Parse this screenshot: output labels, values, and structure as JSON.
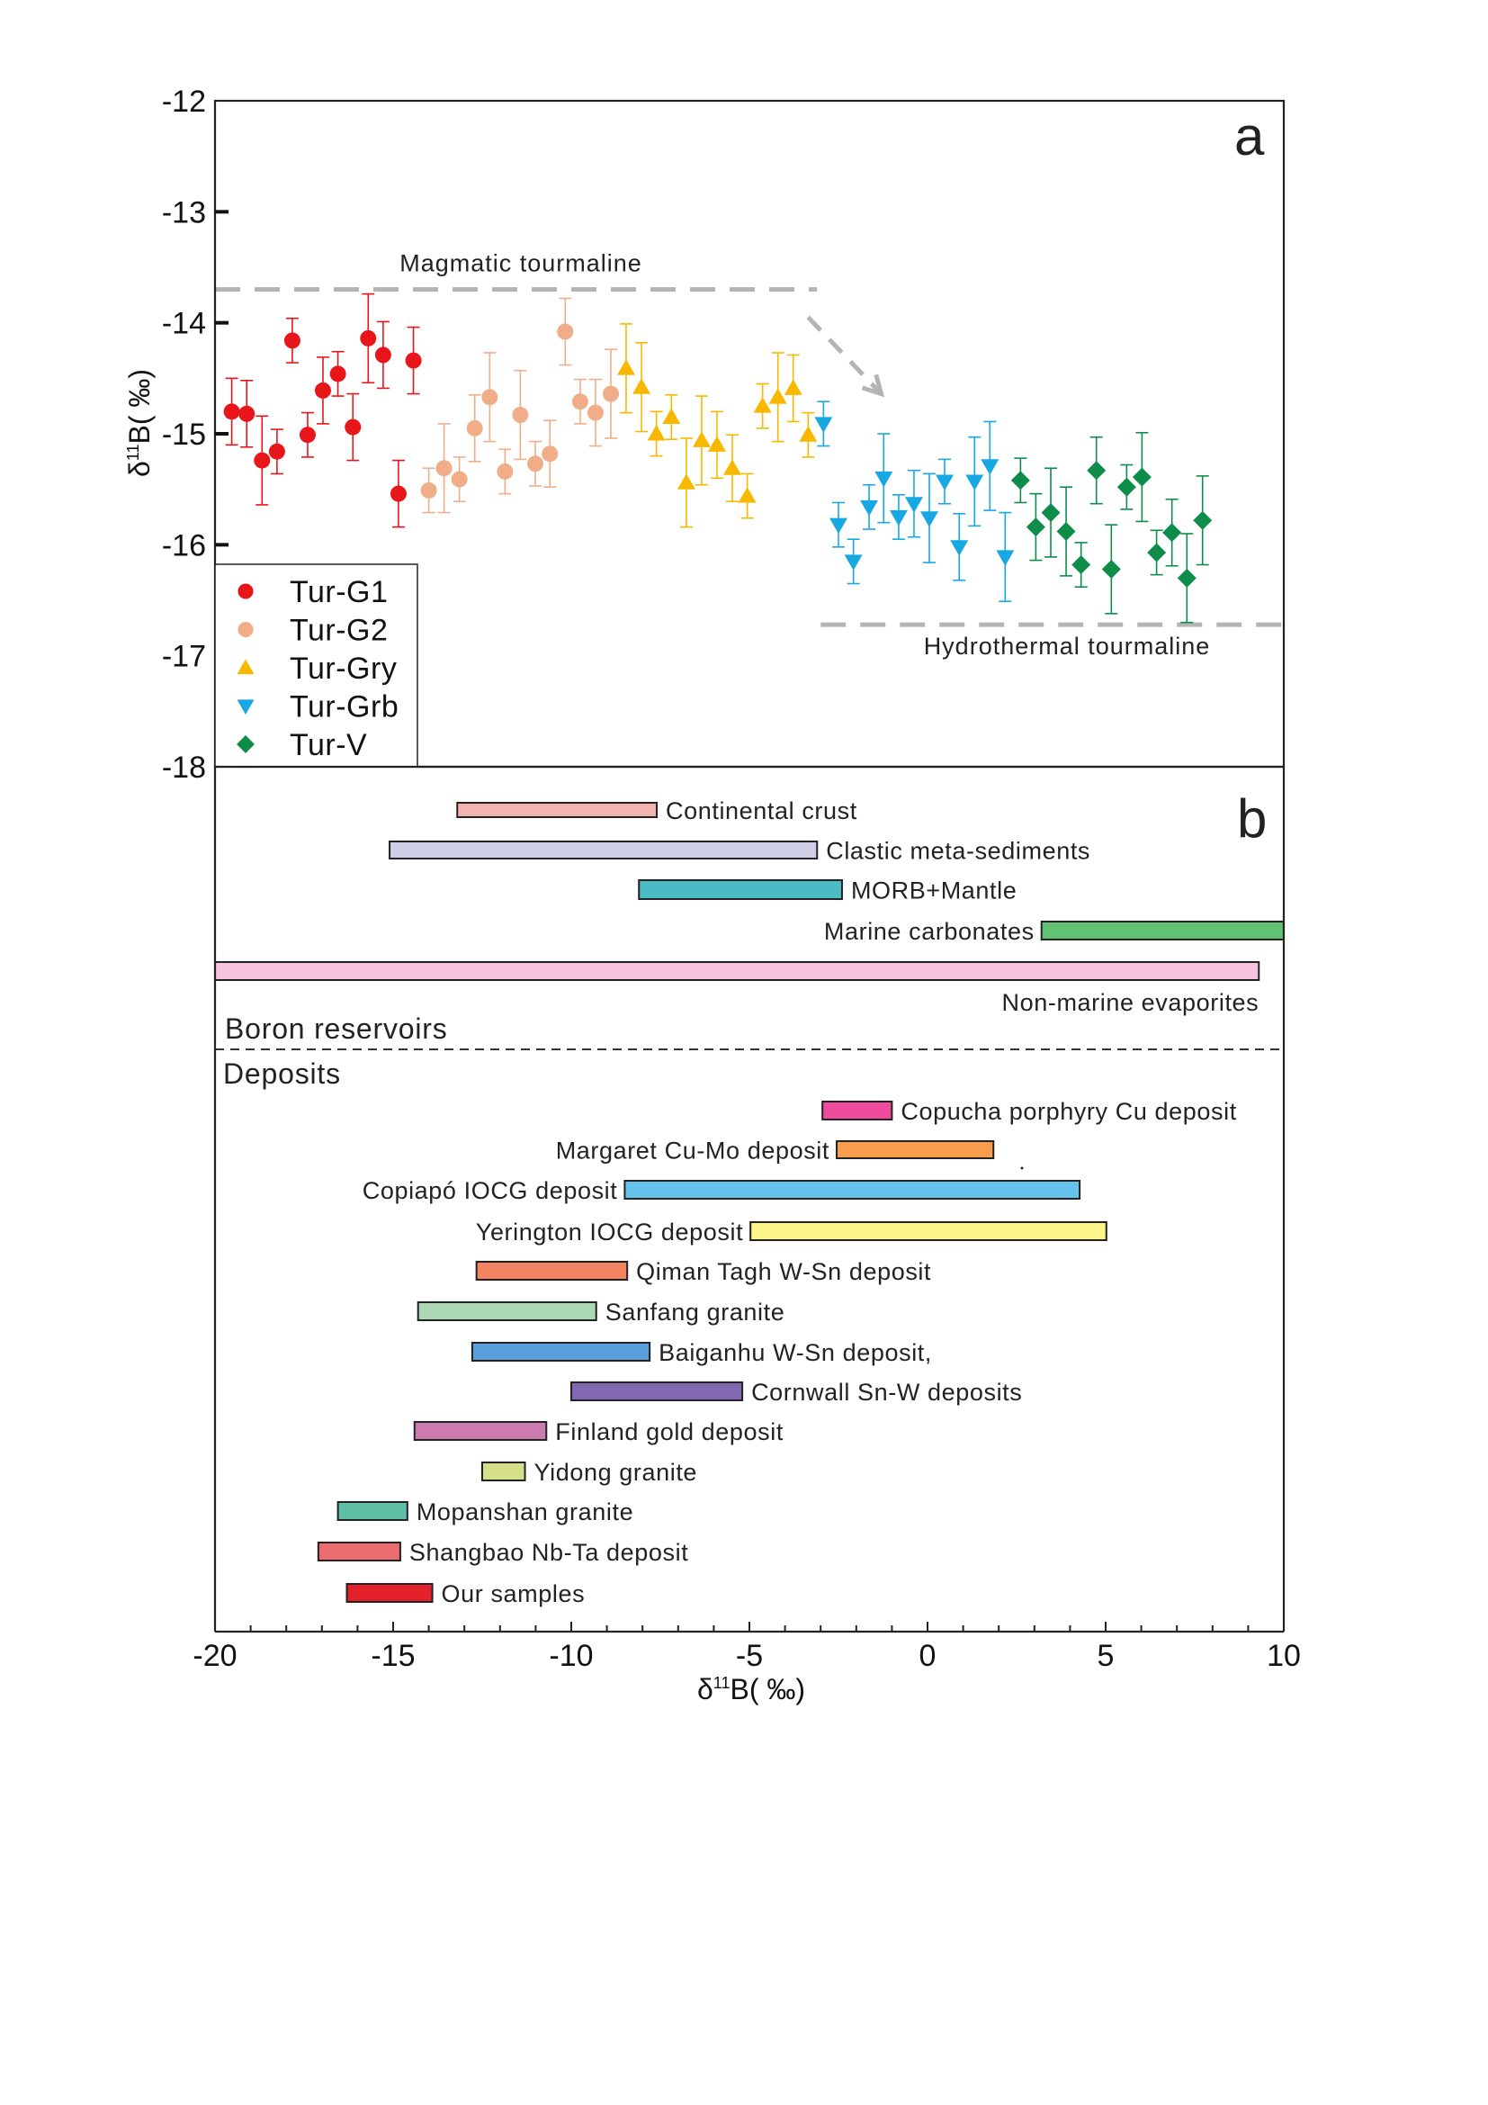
{
  "chart_data": [
    {
      "panel": "a",
      "type": "scatter",
      "title": "",
      "xlabel": "",
      "ylabel": "δ11B(‰)",
      "ylabel_parts": {
        "delta": "δ",
        "sup": "11",
        "rest": "B( ‰)"
      },
      "xlim": [
        -20,
        10
      ],
      "ylim": [
        -18,
        -12
      ],
      "yticks": [
        "-12",
        "-13",
        "-14",
        "-15",
        "-16",
        "-17",
        "-18"
      ],
      "ytick_values": [
        -12,
        -13,
        -14,
        -15,
        -16,
        -17,
        -18
      ],
      "legend_position": "bottom-left",
      "reference_lines": [
        {
          "label": "Magmatic tourmaline",
          "y": -13.7,
          "x_range": [
            -20,
            -3.1
          ],
          "style": "dashed",
          "color": "#b4b4b4"
        },
        {
          "label": "Hydrothermal tourmaline",
          "y": -16.72,
          "x_range": [
            -3.0,
            10
          ],
          "style": "dashed",
          "color": "#b4b4b4"
        }
      ],
      "arrow": {
        "from": [
          -3.35,
          -13.95
        ],
        "to": [
          -1.3,
          -14.64
        ],
        "style": "dashed",
        "color": "#b4b4b4"
      },
      "series": [
        {
          "name": "Tur-G1",
          "marker": "circle",
          "color": "#e8161b",
          "x": [
            -19.53,
            -19.11,
            -18.68,
            -18.26,
            -17.83,
            -17.4,
            -16.97,
            -16.55,
            -16.13,
            -15.7,
            -15.28,
            -14.85,
            -14.43
          ],
          "y": [
            -14.8,
            -14.82,
            -15.24,
            -15.16,
            -14.16,
            -15.01,
            -14.61,
            -14.46,
            -14.94,
            -14.14,
            -14.29,
            -15.54,
            -14.34
          ],
          "err": [
            0.3,
            0.3,
            0.4,
            0.2,
            0.2,
            0.2,
            0.3,
            0.2,
            0.3,
            0.4,
            0.3,
            0.3,
            0.3
          ]
        },
        {
          "name": "Tur-G2",
          "marker": "circle",
          "color": "#f0ad88",
          "x": [
            -14.0,
            -13.57,
            -13.14,
            -12.71,
            -12.29,
            -11.86,
            -11.43,
            -11.01,
            -10.6,
            -10.17,
            -9.75,
            -9.32,
            -8.89
          ],
          "y": [
            -15.51,
            -15.31,
            -15.41,
            -14.95,
            -14.67,
            -15.34,
            -14.83,
            -15.27,
            -15.18,
            -14.08,
            -14.71,
            -14.81,
            -14.64
          ],
          "err": [
            0.2,
            0.4,
            0.2,
            0.3,
            0.4,
            0.2,
            0.4,
            0.2,
            0.3,
            0.3,
            0.2,
            0.3,
            0.4
          ]
        },
        {
          "name": "Tur-Gry",
          "marker": "triangle-up",
          "color": "#f8b800",
          "x": [
            -8.46,
            -8.03,
            -7.61,
            -7.19,
            -6.77,
            -6.34,
            -5.91,
            -5.48,
            -5.06,
            -4.63,
            -4.2,
            -3.77,
            -3.35
          ],
          "y": [
            -14.41,
            -14.58,
            -15.0,
            -14.85,
            -15.44,
            -15.06,
            -15.1,
            -15.31,
            -15.56,
            -14.75,
            -14.67,
            -14.59,
            -15.01
          ],
          "err": [
            0.4,
            0.4,
            0.2,
            0.2,
            0.4,
            0.4,
            0.3,
            0.3,
            0.2,
            0.2,
            0.4,
            0.3,
            0.2
          ]
        },
        {
          "name": "Tur-Grb",
          "marker": "triangle-down",
          "color": "#17a8e3",
          "x": [
            -2.92,
            -2.5,
            -2.08,
            -1.64,
            -1.23,
            -0.81,
            -0.38,
            0.05,
            0.48,
            0.89,
            1.32,
            1.75,
            2.18
          ],
          "y": [
            -14.91,
            -15.82,
            -16.15,
            -15.66,
            -15.4,
            -15.75,
            -15.63,
            -15.76,
            -15.43,
            -16.02,
            -15.43,
            -15.29,
            -16.11
          ],
          "err": [
            0.2,
            0.2,
            0.2,
            0.2,
            0.4,
            0.2,
            0.3,
            0.4,
            0.2,
            0.3,
            0.4,
            0.4,
            0.4
          ]
        },
        {
          "name": "Tur-V",
          "marker": "diamond",
          "color": "#0e8c4a",
          "x": [
            2.61,
            3.04,
            3.46,
            3.89,
            4.31,
            4.74,
            5.16,
            5.59,
            6.02,
            6.43,
            6.86,
            7.28,
            7.72
          ],
          "y": [
            -15.42,
            -15.84,
            -15.71,
            -15.88,
            -16.18,
            -15.33,
            -16.22,
            -15.48,
            -15.39,
            -16.07,
            -15.89,
            -16.3,
            -15.78
          ],
          "err": [
            0.2,
            0.3,
            0.4,
            0.4,
            0.2,
            0.3,
            0.4,
            0.2,
            0.4,
            0.2,
            0.3,
            0.4,
            0.4
          ]
        }
      ]
    },
    {
      "panel": "b",
      "type": "bar",
      "orientation": "horizontal-range",
      "xlabel": "δ11B(‰)",
      "xlabel_parts": {
        "delta": "δ",
        "sup": "11",
        "rest": "B( ‰)"
      },
      "xlim": [
        -20,
        10
      ],
      "xticks": [
        "-20",
        "-15",
        "-10",
        "-5",
        "0",
        "5",
        "10"
      ],
      "xtick_values": [
        -20,
        -15,
        -10,
        -5,
        0,
        5,
        10
      ],
      "sections": [
        {
          "title": "Boron reservoirs",
          "ranges": [
            {
              "name": "Continental crust",
              "min": -13.2,
              "max": -7.6,
              "color": "#f2b3b1",
              "label_side": "right"
            },
            {
              "name": "Clastic meta-sediments",
              "min": -15.1,
              "max": -3.1,
              "color": "#d0cde6",
              "label_side": "right"
            },
            {
              "name": "MORB+Mantle",
              "min": -8.1,
              "max": -2.4,
              "color": "#4cbcc4",
              "label_side": "right"
            },
            {
              "name": "Marine carbonates",
              "min": 3.2,
              "max": 10,
              "color": "#63c174",
              "label_side": "left"
            },
            {
              "name": "Non-marine evaporites",
              "min": -20,
              "max": 9.3,
              "color": "#f7c3e1",
              "label_side": "below"
            }
          ]
        },
        {
          "title": "Deposits",
          "ranges": [
            {
              "name": "Copucha porphyry Cu deposit",
              "min": -2.95,
              "max": -1.0,
              "color": "#ef4b9c",
              "label_side": "right"
            },
            {
              "name": "Margaret  Cu-Mo deposit",
              "min": -2.55,
              "max": 1.85,
              "color": "#f99d4d",
              "label_side": "left"
            },
            {
              "name": "Copiapó IOCG deposit",
              "min": -8.5,
              "max": 4.27,
              "color": "#66c1ec",
              "label_side": "left"
            },
            {
              "name": "Yerington IOCG deposit",
              "min": -4.97,
              "max": 5.02,
              "color": "#fdf48a",
              "label_side": "left"
            },
            {
              "name": "Qiman Tagh W-Sn deposit",
              "min": -12.66,
              "max": -8.43,
              "color": "#f38462",
              "label_side": "right"
            },
            {
              "name": "Sanfang granite",
              "min": -14.3,
              "max": -9.3,
              "color": "#acd8b6",
              "label_side": "right"
            },
            {
              "name": "Baiganhu W-Sn deposit,",
              "min": -12.78,
              "max": -7.8,
              "color": "#5a9fdc",
              "label_side": "right"
            },
            {
              "name": "Cornwall Sn-W deposits",
              "min": -10.0,
              "max": -5.2,
              "color": "#8069b0",
              "label_side": "right"
            },
            {
              "name": "Finland gold deposit",
              "min": -14.4,
              "max": -10.7,
              "color": "#cc7bb1",
              "label_side": "right"
            },
            {
              "name": "Yidong granite",
              "min": -12.5,
              "max": -11.3,
              "color": "#d6e08b",
              "label_side": "right"
            },
            {
              "name": "Mopanshan granite",
              "min": -16.55,
              "max": -14.6,
              "color": "#5fbea6",
              "label_side": "right"
            },
            {
              "name": "Shangbao  Nb-Ta deposit",
              "min": -17.1,
              "max": -14.8,
              "color": "#ec6d70",
              "label_side": "right"
            },
            {
              "name": "Our samples",
              "min": -16.3,
              "max": -13.9,
              "color": "#e3212b",
              "label_side": "right"
            }
          ]
        }
      ]
    }
  ],
  "panel_labels": {
    "a": "a",
    "b": "b"
  }
}
